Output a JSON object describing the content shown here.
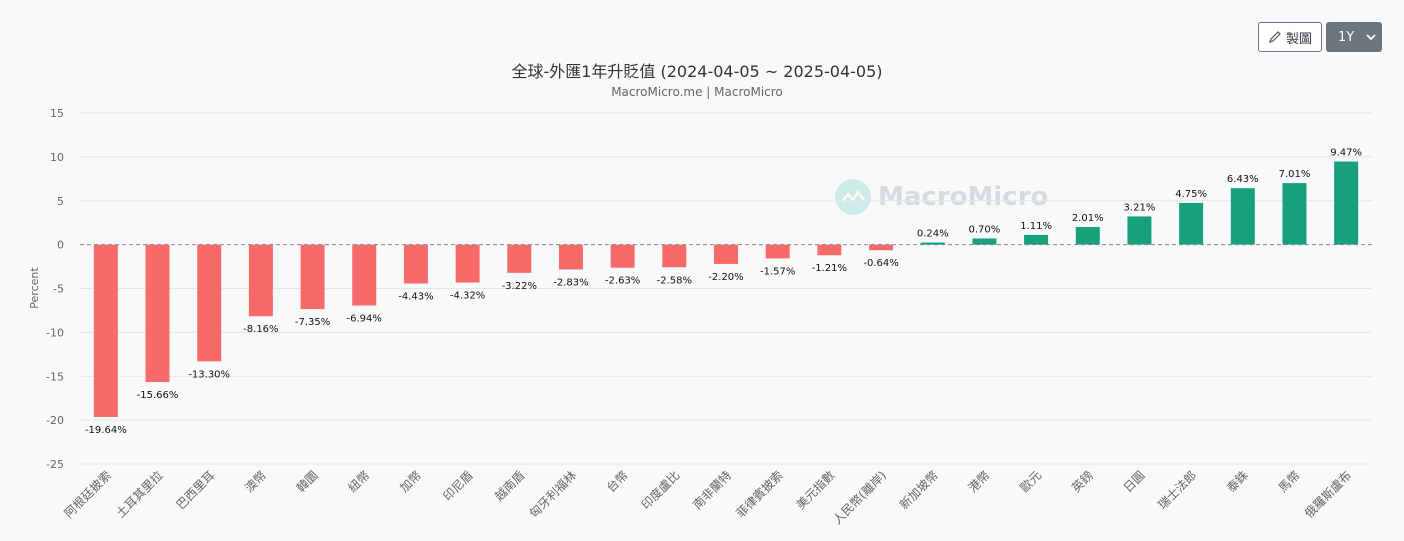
{
  "toolbar": {
    "chart_label": "製圖",
    "range_label": "1Y"
  },
  "watermark": "MacroMicro",
  "chart_data": {
    "type": "bar",
    "title": "全球-外匯1年升貶值 (2024-04-05 ~ 2025-04-05)",
    "subtitle": "MacroMicro.me | MacroMicro",
    "ylabel": "Percent",
    "ylim": [
      -25,
      15
    ],
    "yticks": [
      15,
      10,
      5,
      0,
      -5,
      -10,
      -15,
      -20,
      -25
    ],
    "grid": true,
    "categories": [
      "阿根廷披索",
      "土耳其里拉",
      "巴西里耳",
      "澳幣",
      "韓圜",
      "紐幣",
      "加幣",
      "印尼盾",
      "越南盾",
      "匈牙利福林",
      "台幣",
      "印度盧比",
      "南非蘭特",
      "菲律賓披索",
      "美元指數",
      "人民幣(離岸)",
      "新加坡幣",
      "港幣",
      "歐元",
      "英鎊",
      "日圓",
      "瑞士法郎",
      "泰銖",
      "馬幣",
      "俄羅斯盧布"
    ],
    "values": [
      -19.64,
      -15.66,
      -13.3,
      -8.16,
      -7.35,
      -6.94,
      -4.43,
      -4.32,
      -3.22,
      -2.83,
      -2.63,
      -2.58,
      -2.2,
      -1.57,
      -1.21,
      -0.64,
      0.24,
      0.7,
      1.11,
      2.01,
      3.21,
      4.75,
      6.43,
      7.01,
      9.47
    ],
    "value_labels": [
      "-19.64%",
      "-15.66%",
      "-13.30%",
      "-8.16%",
      "-7.35%",
      "-6.94%",
      "-4.43%",
      "-4.32%",
      "-3.22%",
      "-2.83%",
      "-2.63%",
      "-2.58%",
      "-2.20%",
      "-1.57%",
      "-1.21%",
      "-0.64%",
      "0.24%",
      "0.70%",
      "1.11%",
      "2.01%",
      "3.21%",
      "4.75%",
      "6.43%",
      "7.01%",
      "9.47%"
    ],
    "colors": {
      "negative": "#f76a6a",
      "positive": "#17a07c",
      "grid": "#e6e6e6",
      "zero": "#888888"
    }
  }
}
